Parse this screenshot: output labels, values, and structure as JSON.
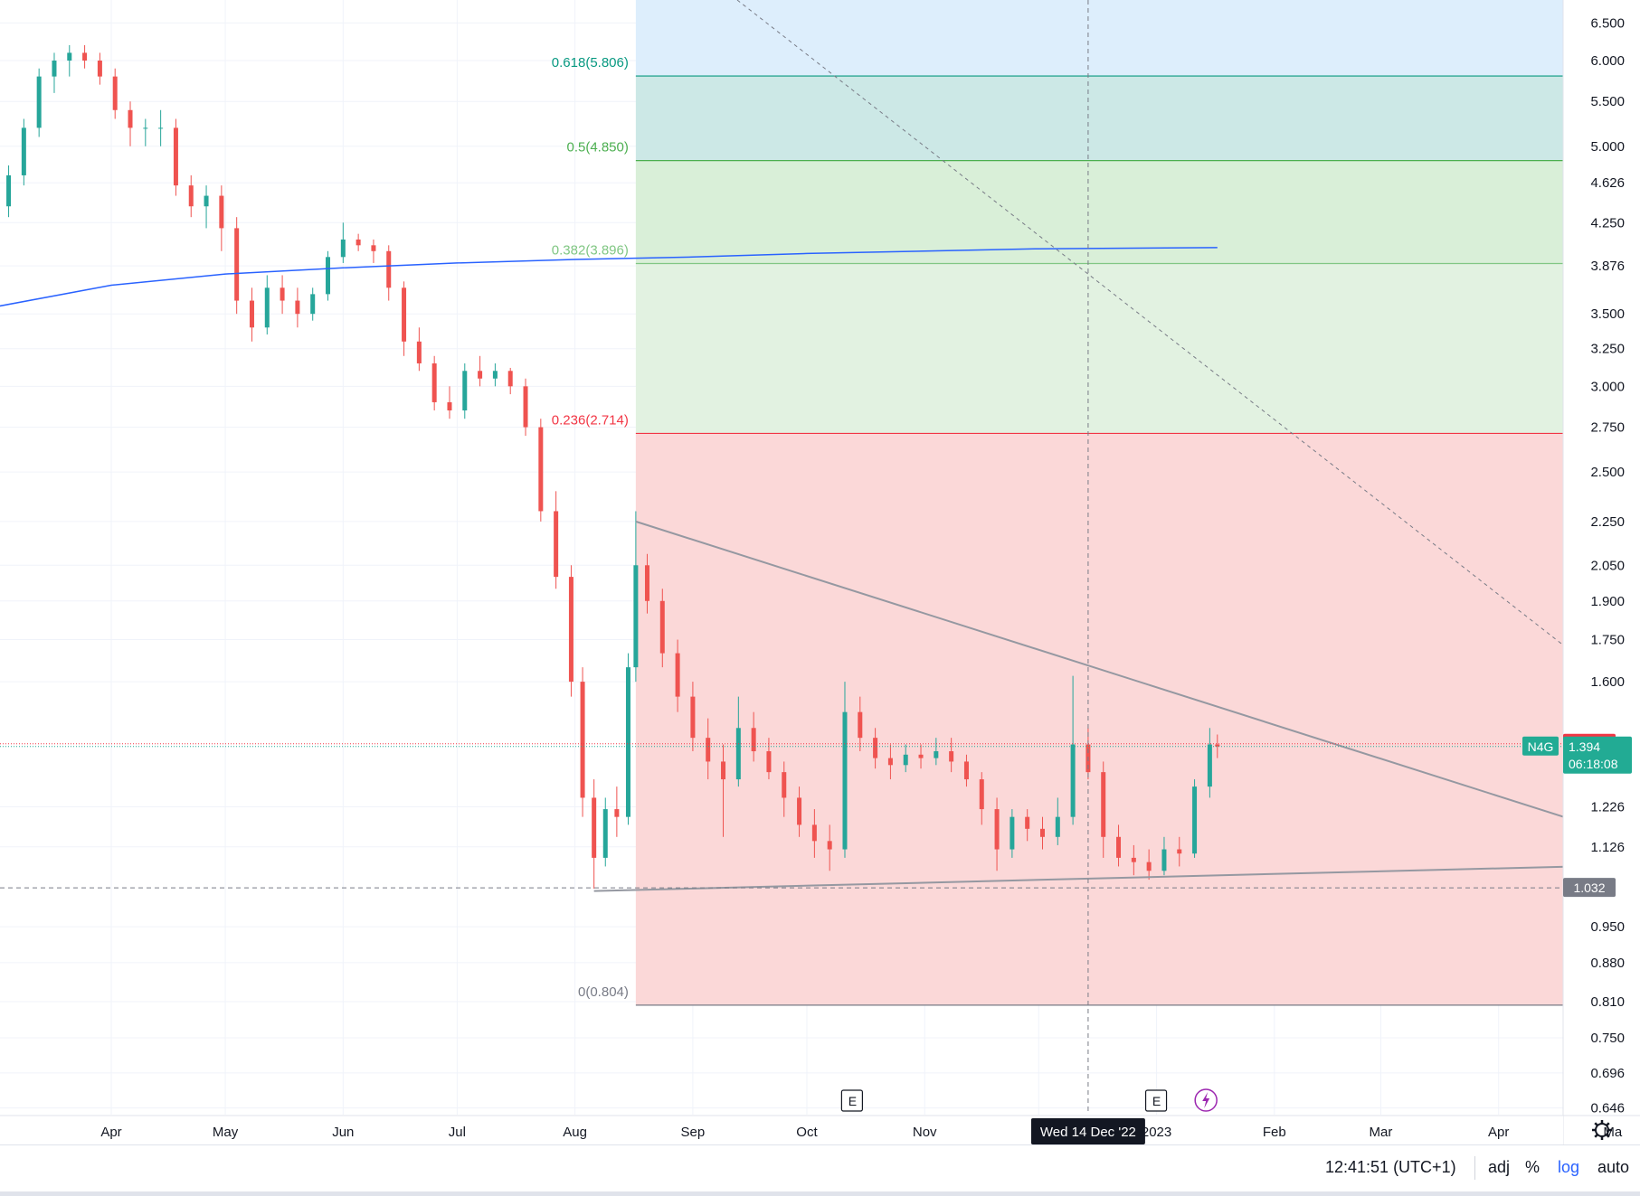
{
  "chart_data": {
    "type": "candlestick",
    "symbol": "N4G",
    "scale": "log",
    "price_axis_ticks": [
      6.5,
      6.0,
      5.5,
      5.0,
      4.626,
      4.25,
      3.876,
      3.5,
      3.25,
      3.0,
      2.75,
      2.5,
      2.25,
      2.05,
      1.9,
      1.75,
      1.6,
      1.226,
      1.126,
      0.95,
      0.88,
      0.81,
      0.75,
      0.696,
      0.646
    ],
    "price_axis_tick_labels": [
      "6.500",
      "6.000",
      "5.500",
      "5.000",
      "4.626",
      "4.250",
      "3.876",
      "3.500",
      "3.250",
      "3.000",
      "2.750",
      "2.500",
      "2.250",
      "2.050",
      "1.900",
      "1.750",
      "1.600",
      "1.226",
      "1.126",
      "0.950",
      "0.880",
      "0.810",
      "0.750",
      "0.696",
      "0.646"
    ],
    "time_axis_labels": [
      "Apr",
      "May",
      "Jun",
      "Jul",
      "Aug",
      "Sep",
      "Oct",
      "Nov",
      "2023",
      "Feb",
      "Mar",
      "Apr",
      "Ma"
    ],
    "crosshair_date_label": "Wed 14 Dec '22",
    "fib_levels": [
      {
        "label": "0.618(5.806)",
        "value": 5.806,
        "color": "#089981"
      },
      {
        "label": "0.5(4.850)",
        "value": 4.85,
        "color": "#4caf50"
      },
      {
        "label": "0.382(3.896)",
        "value": 3.896,
        "color": "#81c784"
      },
      {
        "label": "0.236(2.714)",
        "value": 2.714,
        "color": "#f23645"
      },
      {
        "label": "0(0.804)",
        "value": 0.804,
        "color": "#787b86"
      }
    ],
    "price_tags": [
      {
        "label": "1.402",
        "value": 1.402,
        "color": "#f23645"
      },
      {
        "label": "1.394",
        "value": 1.394,
        "color": "#22ab94",
        "symbol": "N4G",
        "sub": "06:18:08"
      },
      {
        "label": "1.032",
        "value": 1.032,
        "color": "#787b86"
      }
    ],
    "moving_average": [
      {
        "date": "Mar 1 2022",
        "value": 3.55
      },
      {
        "date": "Apr 1 2022",
        "value": 3.72
      },
      {
        "date": "May 1 2022",
        "value": 3.81
      },
      {
        "date": "Jun 1 2022",
        "value": 3.86
      },
      {
        "date": "Jul 1 2022",
        "value": 3.9
      },
      {
        "date": "Aug 1 2022",
        "value": 3.93
      },
      {
        "date": "Sep 1 2022",
        "value": 3.95
      },
      {
        "date": "Oct 1 2022",
        "value": 3.98
      },
      {
        "date": "Nov 1 2022",
        "value": 4.0
      },
      {
        "date": "Dec 1 2022",
        "value": 4.02
      },
      {
        "date": "Jan 17 2023",
        "value": 4.03
      }
    ],
    "candles": [
      {
        "date": "Mar 1",
        "o": 4.2,
        "h": 4.5,
        "l": 4.0,
        "c": 4.4
      },
      {
        "date": "Mar 5",
        "o": 4.4,
        "h": 4.8,
        "l": 4.3,
        "c": 4.7
      },
      {
        "date": "Mar 9",
        "o": 4.7,
        "h": 5.3,
        "l": 4.6,
        "c": 5.2
      },
      {
        "date": "Mar 13",
        "o": 5.2,
        "h": 5.9,
        "l": 5.1,
        "c": 5.8
      },
      {
        "date": "Mar 17",
        "o": 5.8,
        "h": 6.1,
        "l": 5.6,
        "c": 6.0
      },
      {
        "date": "Mar 21",
        "o": 6.0,
        "h": 6.2,
        "l": 5.8,
        "c": 6.1
      },
      {
        "date": "Mar 25",
        "o": 6.1,
        "h": 6.2,
        "l": 5.9,
        "c": 6.0
      },
      {
        "date": "Mar 29",
        "o": 6.0,
        "h": 6.1,
        "l": 5.7,
        "c": 5.8
      },
      {
        "date": "Apr 2",
        "o": 5.8,
        "h": 5.9,
        "l": 5.3,
        "c": 5.4
      },
      {
        "date": "Apr 6",
        "o": 5.4,
        "h": 5.5,
        "l": 5.0,
        "c": 5.2
      },
      {
        "date": "Apr 10",
        "o": 5.2,
        "h": 5.3,
        "l": 5.0,
        "c": 5.2
      },
      {
        "date": "Apr 14",
        "o": 5.2,
        "h": 5.4,
        "l": 5.0,
        "c": 5.2
      },
      {
        "date": "Apr 18",
        "o": 5.2,
        "h": 5.3,
        "l": 4.5,
        "c": 4.6
      },
      {
        "date": "Apr 22",
        "o": 4.6,
        "h": 4.7,
        "l": 4.3,
        "c": 4.4
      },
      {
        "date": "Apr 26",
        "o": 4.4,
        "h": 4.6,
        "l": 4.2,
        "c": 4.5
      },
      {
        "date": "Apr 30",
        "o": 4.5,
        "h": 4.6,
        "l": 4.0,
        "c": 4.2
      },
      {
        "date": "May 4",
        "o": 4.2,
        "h": 4.3,
        "l": 3.5,
        "c": 3.6
      },
      {
        "date": "May 8",
        "o": 3.6,
        "h": 3.7,
        "l": 3.3,
        "c": 3.4
      },
      {
        "date": "May 12",
        "o": 3.4,
        "h": 3.8,
        "l": 3.35,
        "c": 3.7
      },
      {
        "date": "May 16",
        "o": 3.7,
        "h": 3.8,
        "l": 3.5,
        "c": 3.6
      },
      {
        "date": "May 20",
        "o": 3.6,
        "h": 3.7,
        "l": 3.4,
        "c": 3.5
      },
      {
        "date": "May 24",
        "o": 3.5,
        "h": 3.7,
        "l": 3.45,
        "c": 3.65
      },
      {
        "date": "May 28",
        "o": 3.65,
        "h": 4.0,
        "l": 3.6,
        "c": 3.95
      },
      {
        "date": "Jun 1",
        "o": 3.95,
        "h": 4.25,
        "l": 3.9,
        "c": 4.1
      },
      {
        "date": "Jun 5",
        "o": 4.1,
        "h": 4.15,
        "l": 4.0,
        "c": 4.05
      },
      {
        "date": "Jun 9",
        "o": 4.05,
        "h": 4.1,
        "l": 3.9,
        "c": 4.0
      },
      {
        "date": "Jun 13",
        "o": 4.0,
        "h": 4.05,
        "l": 3.6,
        "c": 3.7
      },
      {
        "date": "Jun 17",
        "o": 3.7,
        "h": 3.75,
        "l": 3.2,
        "c": 3.3
      },
      {
        "date": "Jun 21",
        "o": 3.3,
        "h": 3.4,
        "l": 3.1,
        "c": 3.15
      },
      {
        "date": "Jun 25",
        "o": 3.15,
        "h": 3.2,
        "l": 2.85,
        "c": 2.9
      },
      {
        "date": "Jun 29",
        "o": 2.9,
        "h": 3.0,
        "l": 2.8,
        "c": 2.85
      },
      {
        "date": "Jul 3",
        "o": 2.85,
        "h": 3.15,
        "l": 2.8,
        "c": 3.1
      },
      {
        "date": "Jul 7",
        "o": 3.1,
        "h": 3.2,
        "l": 3.0,
        "c": 3.05
      },
      {
        "date": "Jul 11",
        "o": 3.05,
        "h": 3.15,
        "l": 3.0,
        "c": 3.1
      },
      {
        "date": "Jul 15",
        "o": 3.1,
        "h": 3.12,
        "l": 2.95,
        "c": 3.0
      },
      {
        "date": "Jul 19",
        "o": 3.0,
        "h": 3.05,
        "l": 2.7,
        "c": 2.75
      },
      {
        "date": "Jul 23",
        "o": 2.75,
        "h": 2.8,
        "l": 2.25,
        "c": 2.3
      },
      {
        "date": "Jul 27",
        "o": 2.3,
        "h": 2.4,
        "l": 1.95,
        "c": 2.0
      },
      {
        "date": "Jul 31",
        "o": 2.0,
        "h": 2.05,
        "l": 1.55,
        "c": 1.6
      },
      {
        "date": "Aug 3",
        "o": 1.6,
        "h": 1.65,
        "l": 1.2,
        "c": 1.25
      },
      {
        "date": "Aug 6",
        "o": 1.25,
        "h": 1.3,
        "l": 1.03,
        "c": 1.1
      },
      {
        "date": "Aug 9",
        "o": 1.1,
        "h": 1.25,
        "l": 1.08,
        "c": 1.22
      },
      {
        "date": "Aug 12",
        "o": 1.22,
        "h": 1.28,
        "l": 1.15,
        "c": 1.2
      },
      {
        "date": "Aug 15",
        "o": 1.2,
        "h": 1.7,
        "l": 1.18,
        "c": 1.65
      },
      {
        "date": "Aug 17",
        "o": 1.65,
        "h": 2.3,
        "l": 1.6,
        "c": 2.05
      },
      {
        "date": "Aug 20",
        "o": 2.05,
        "h": 2.1,
        "l": 1.85,
        "c": 1.9
      },
      {
        "date": "Aug 24",
        "o": 1.9,
        "h": 1.95,
        "l": 1.65,
        "c": 1.7
      },
      {
        "date": "Aug 28",
        "o": 1.7,
        "h": 1.75,
        "l": 1.5,
        "c": 1.55
      },
      {
        "date": "Sep 1",
        "o": 1.55,
        "h": 1.6,
        "l": 1.38,
        "c": 1.42
      },
      {
        "date": "Sep 5",
        "o": 1.42,
        "h": 1.48,
        "l": 1.3,
        "c": 1.35
      },
      {
        "date": "Sep 9",
        "o": 1.35,
        "h": 1.4,
        "l": 1.15,
        "c": 1.3
      },
      {
        "date": "Sep 13",
        "o": 1.3,
        "h": 1.55,
        "l": 1.28,
        "c": 1.45
      },
      {
        "date": "Sep 17",
        "o": 1.45,
        "h": 1.5,
        "l": 1.35,
        "c": 1.38
      },
      {
        "date": "Sep 21",
        "o": 1.38,
        "h": 1.42,
        "l": 1.3,
        "c": 1.32
      },
      {
        "date": "Sep 25",
        "o": 1.32,
        "h": 1.35,
        "l": 1.2,
        "c": 1.25
      },
      {
        "date": "Sep 29",
        "o": 1.25,
        "h": 1.28,
        "l": 1.15,
        "c": 1.18
      },
      {
        "date": "Oct 3",
        "o": 1.18,
        "h": 1.22,
        "l": 1.1,
        "c": 1.14
      },
      {
        "date": "Oct 7",
        "o": 1.14,
        "h": 1.18,
        "l": 1.07,
        "c": 1.12
      },
      {
        "date": "Oct 11",
        "o": 1.12,
        "h": 1.6,
        "l": 1.1,
        "c": 1.5
      },
      {
        "date": "Oct 15",
        "o": 1.5,
        "h": 1.55,
        "l": 1.38,
        "c": 1.42
      },
      {
        "date": "Oct 19",
        "o": 1.42,
        "h": 1.45,
        "l": 1.33,
        "c": 1.36
      },
      {
        "date": "Oct 23",
        "o": 1.36,
        "h": 1.4,
        "l": 1.3,
        "c": 1.34
      },
      {
        "date": "Oct 27",
        "o": 1.34,
        "h": 1.4,
        "l": 1.32,
        "c": 1.37
      },
      {
        "date": "Oct 31",
        "o": 1.37,
        "h": 1.4,
        "l": 1.33,
        "c": 1.36
      },
      {
        "date": "Nov 4",
        "o": 1.36,
        "h": 1.42,
        "l": 1.34,
        "c": 1.38
      },
      {
        "date": "Nov 8",
        "o": 1.38,
        "h": 1.42,
        "l": 1.32,
        "c": 1.35
      },
      {
        "date": "Nov 12",
        "o": 1.35,
        "h": 1.37,
        "l": 1.28,
        "c": 1.3
      },
      {
        "date": "Nov 16",
        "o": 1.3,
        "h": 1.32,
        "l": 1.18,
        "c": 1.22
      },
      {
        "date": "Nov 20",
        "o": 1.22,
        "h": 1.25,
        "l": 1.07,
        "c": 1.12
      },
      {
        "date": "Nov 24",
        "o": 1.12,
        "h": 1.22,
        "l": 1.1,
        "c": 1.2
      },
      {
        "date": "Nov 28",
        "o": 1.2,
        "h": 1.22,
        "l": 1.14,
        "c": 1.17
      },
      {
        "date": "Dec 2",
        "o": 1.17,
        "h": 1.2,
        "l": 1.12,
        "c": 1.15
      },
      {
        "date": "Dec 6",
        "o": 1.15,
        "h": 1.25,
        "l": 1.13,
        "c": 1.2
      },
      {
        "date": "Dec 10",
        "o": 1.2,
        "h": 1.62,
        "l": 1.18,
        "c": 1.4
      },
      {
        "date": "Dec 14",
        "o": 1.4,
        "h": 1.45,
        "l": 1.3,
        "c": 1.32
      },
      {
        "date": "Dec 18",
        "o": 1.32,
        "h": 1.35,
        "l": 1.1,
        "c": 1.15
      },
      {
        "date": "Dec 22",
        "o": 1.15,
        "h": 1.18,
        "l": 1.08,
        "c": 1.1
      },
      {
        "date": "Dec 26",
        "o": 1.1,
        "h": 1.13,
        "l": 1.06,
        "c": 1.09
      },
      {
        "date": "Dec 30",
        "o": 1.09,
        "h": 1.12,
        "l": 1.05,
        "c": 1.07
      },
      {
        "date": "Jan 3",
        "o": 1.07,
        "h": 1.15,
        "l": 1.06,
        "c": 1.12
      },
      {
        "date": "Jan 7",
        "o": 1.12,
        "h": 1.15,
        "l": 1.08,
        "c": 1.11
      },
      {
        "date": "Jan 11",
        "o": 1.11,
        "h": 1.3,
        "l": 1.1,
        "c": 1.28
      },
      {
        "date": "Jan 15",
        "o": 1.28,
        "h": 1.45,
        "l": 1.25,
        "c": 1.4
      },
      {
        "date": "Jan 17",
        "o": 1.4,
        "h": 1.43,
        "l": 1.36,
        "c": 1.394
      }
    ],
    "range_low_date": "Aug 6 2022",
    "range_low_value": 1.032
  },
  "markers": [
    {
      "letter": "E",
      "date": "Oct 13 2022"
    },
    {
      "letter": "E",
      "date": "Jan 1 2023"
    }
  ],
  "bottom_bar": {
    "time": "12:41:51 (UTC+1)",
    "adj": "adj",
    "percent": "%",
    "log": "log",
    "auto": "auto"
  },
  "colors": {
    "up": "#26a69a",
    "down": "#ef5350",
    "ma": "#2962ff",
    "trendline": "#9598a1",
    "log_active": "#2962ff"
  }
}
